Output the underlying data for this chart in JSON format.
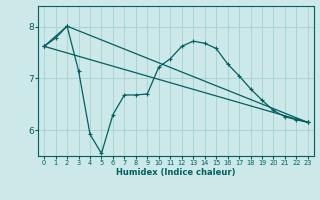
{
  "xlabel": "Humidex (Indice chaleur)",
  "bg_color": "#cce8e8",
  "grid_color": "#aad4d4",
  "line_color": "#006060",
  "xlim": [
    -0.5,
    23.5
  ],
  "ylim": [
    5.5,
    8.4
  ],
  "yticks": [
    6,
    7,
    8
  ],
  "xticks": [
    0,
    1,
    2,
    3,
    4,
    5,
    6,
    7,
    8,
    9,
    10,
    11,
    12,
    13,
    14,
    15,
    16,
    17,
    18,
    19,
    20,
    21,
    22,
    23
  ],
  "series1_x": [
    0,
    1,
    2,
    3,
    4,
    5,
    6,
    7,
    8,
    9,
    10,
    11,
    12,
    13,
    14,
    15,
    16,
    17,
    18,
    19,
    20,
    21,
    22,
    23
  ],
  "series1_y": [
    7.62,
    7.78,
    8.01,
    7.15,
    5.92,
    5.55,
    6.3,
    6.68,
    6.68,
    6.7,
    7.22,
    7.38,
    7.62,
    7.72,
    7.68,
    7.58,
    7.28,
    7.05,
    6.8,
    6.58,
    6.38,
    6.26,
    6.2,
    6.15
  ],
  "series2_x": [
    0,
    23
  ],
  "series2_y": [
    7.62,
    6.15
  ],
  "series3_x": [
    0,
    2,
    23
  ],
  "series3_y": [
    7.62,
    8.01,
    6.15
  ]
}
